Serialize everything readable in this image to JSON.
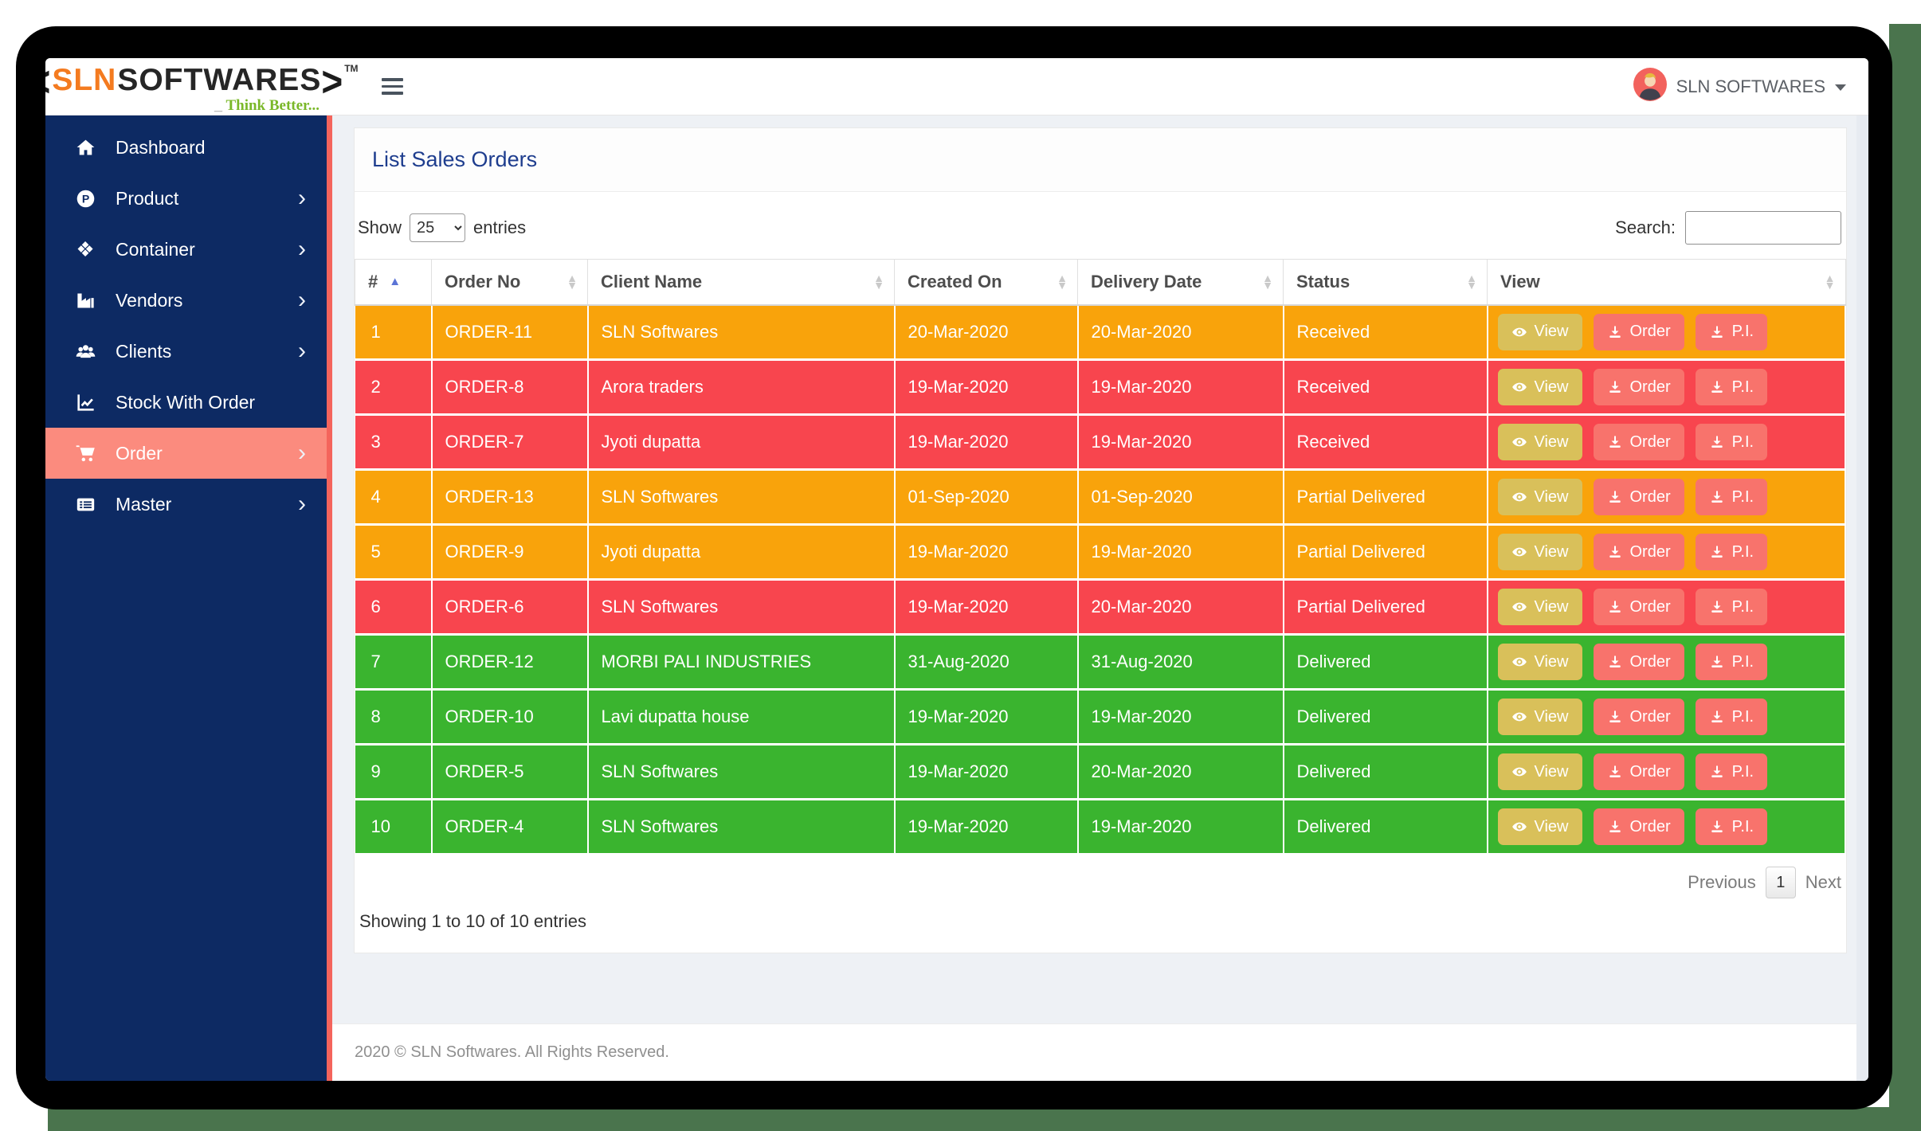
{
  "topbar": {
    "logo": {
      "bracket_left": "<",
      "word_primary": "SLN",
      "word_secondary": "SOFTWARES",
      "bracket_right": ">",
      "tm": "TM",
      "tagline_dash": "_",
      "tagline": "Think Better..."
    },
    "user": {
      "name": "SLN SOFTWARES"
    }
  },
  "sidebar": {
    "items": [
      {
        "label": "Dashboard",
        "icon": "home-icon",
        "has_submenu": false,
        "active": false
      },
      {
        "label": "Product",
        "icon": "product-icon",
        "has_submenu": true,
        "active": false
      },
      {
        "label": "Container",
        "icon": "container-icon",
        "has_submenu": true,
        "active": false
      },
      {
        "label": "Vendors",
        "icon": "vendors-icon",
        "has_submenu": true,
        "active": false
      },
      {
        "label": "Clients",
        "icon": "clients-icon",
        "has_submenu": true,
        "active": false
      },
      {
        "label": "Stock With Order",
        "icon": "stock-icon",
        "has_submenu": false,
        "active": false
      },
      {
        "label": "Order",
        "icon": "cart-icon",
        "has_submenu": true,
        "active": true
      },
      {
        "label": "Master",
        "icon": "master-icon",
        "has_submenu": true,
        "active": false
      }
    ]
  },
  "page": {
    "title": "List Sales Orders"
  },
  "controls": {
    "show_label": "Show",
    "entries_label": "entries",
    "page_size_options": [
      "25"
    ],
    "page_size_selected": "25",
    "search_label": "Search:",
    "search_value": ""
  },
  "table": {
    "columns": [
      {
        "label": "#",
        "sorted": "asc"
      },
      {
        "label": "Order No",
        "sorted": null
      },
      {
        "label": "Client Name",
        "sorted": null
      },
      {
        "label": "Created On",
        "sorted": null
      },
      {
        "label": "Delivery Date",
        "sorted": null
      },
      {
        "label": "Status",
        "sorted": null
      },
      {
        "label": "View",
        "sorted": null
      }
    ],
    "rows": [
      {
        "num": "1",
        "order_no": "ORDER-11",
        "client": "SLN Softwares",
        "created_on": "20-Mar-2020",
        "delivery_date": "20-Mar-2020",
        "status": "Received",
        "color": "orange"
      },
      {
        "num": "2",
        "order_no": "ORDER-8",
        "client": "Arora traders",
        "created_on": "19-Mar-2020",
        "delivery_date": "19-Mar-2020",
        "status": "Received",
        "color": "red"
      },
      {
        "num": "3",
        "order_no": "ORDER-7",
        "client": "Jyoti dupatta",
        "created_on": "19-Mar-2020",
        "delivery_date": "19-Mar-2020",
        "status": "Received",
        "color": "red"
      },
      {
        "num": "4",
        "order_no": "ORDER-13",
        "client": "SLN Softwares",
        "created_on": "01-Sep-2020",
        "delivery_date": "01-Sep-2020",
        "status": "Partial Delivered",
        "color": "orange"
      },
      {
        "num": "5",
        "order_no": "ORDER-9",
        "client": "Jyoti dupatta",
        "created_on": "19-Mar-2020",
        "delivery_date": "19-Mar-2020",
        "status": "Partial Delivered",
        "color": "orange"
      },
      {
        "num": "6",
        "order_no": "ORDER-6",
        "client": "SLN Softwares",
        "created_on": "19-Mar-2020",
        "delivery_date": "20-Mar-2020",
        "status": "Partial Delivered",
        "color": "red"
      },
      {
        "num": "7",
        "order_no": "ORDER-12",
        "client": "MORBI PALI INDUSTRIES",
        "created_on": "31-Aug-2020",
        "delivery_date": "31-Aug-2020",
        "status": "Delivered",
        "color": "green"
      },
      {
        "num": "8",
        "order_no": "ORDER-10",
        "client": "Lavi dupatta house",
        "created_on": "19-Mar-2020",
        "delivery_date": "19-Mar-2020",
        "status": "Delivered",
        "color": "green"
      },
      {
        "num": "9",
        "order_no": "ORDER-5",
        "client": "SLN Softwares",
        "created_on": "19-Mar-2020",
        "delivery_date": "20-Mar-2020",
        "status": "Delivered",
        "color": "green"
      },
      {
        "num": "10",
        "order_no": "ORDER-4",
        "client": "SLN Softwares",
        "created_on": "19-Mar-2020",
        "delivery_date": "19-Mar-2020",
        "status": "Delivered",
        "color": "green"
      }
    ],
    "summary": "Showing 1 to 10 of 10 entries"
  },
  "buttons": {
    "view_label": "View",
    "order_label": "Order",
    "pi_label": "P.I."
  },
  "pagination": {
    "previous_label": "Previous",
    "current_page": "1",
    "next_label": "Next"
  },
  "footer": {
    "text": "2020 © SLN Softwares. All Rights Reserved."
  },
  "colors": {
    "sidebar_bg": "#0d2a63",
    "sidebar_active_bg": "#fb8b7e",
    "accent_stripe": "#f4645c",
    "title_color": "#1e3d8e",
    "logo_orange": "#f47b20",
    "tagline_green": "#7ab829",
    "btn_view_bg": "#d9c05a",
    "btn_download_bg": "#f8736c",
    "rows": {
      "orange": "#f9a30b",
      "red": "#f8454e",
      "green": "#3ab42f"
    }
  }
}
